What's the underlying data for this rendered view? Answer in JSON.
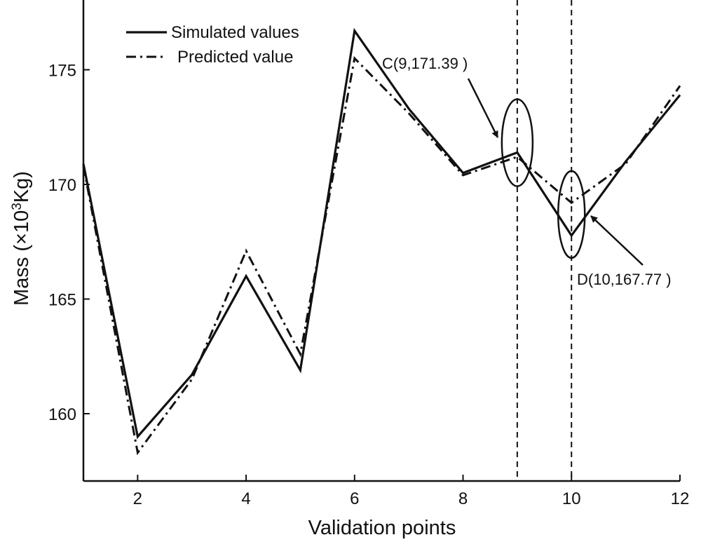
{
  "chart_data": {
    "type": "line",
    "title": "",
    "xlabel": "Validation points",
    "ylabel_main": "Mass (×10",
    "ylabel_sup": "3",
    "ylabel_unit": "Kg)",
    "ylabel": "Mass (×10³Kg)",
    "xlim": [
      1,
      12
    ],
    "ylim": [
      157,
      178
    ],
    "xticks": [
      2,
      4,
      6,
      8,
      10,
      12
    ],
    "yticks": [
      160,
      165,
      170,
      175
    ],
    "grid": false,
    "legend_position": "top-left",
    "x": [
      1,
      2,
      3,
      4,
      5,
      6,
      7,
      8,
      9,
      10,
      11,
      12
    ],
    "series": [
      {
        "name": "Simulated values",
        "style": "solid",
        "values": [
          170.9,
          159.0,
          161.7,
          166.0,
          161.9,
          176.7,
          173.3,
          170.5,
          171.39,
          167.77,
          171.0,
          173.9
        ]
      },
      {
        "name": "Predicted value",
        "style": "dash-dot",
        "values": [
          170.8,
          158.3,
          161.5,
          167.1,
          162.6,
          175.5,
          173.1,
          170.4,
          171.2,
          169.2,
          170.9,
          174.3
        ]
      }
    ],
    "vertical_lines": [
      9,
      10
    ],
    "annotations": [
      {
        "id": "C",
        "text": "C(9,171.39 )",
        "x": 9,
        "y": 171.39
      },
      {
        "id": "D",
        "text": "D(10,167.77 )",
        "x": 10,
        "y": 167.77
      }
    ]
  }
}
